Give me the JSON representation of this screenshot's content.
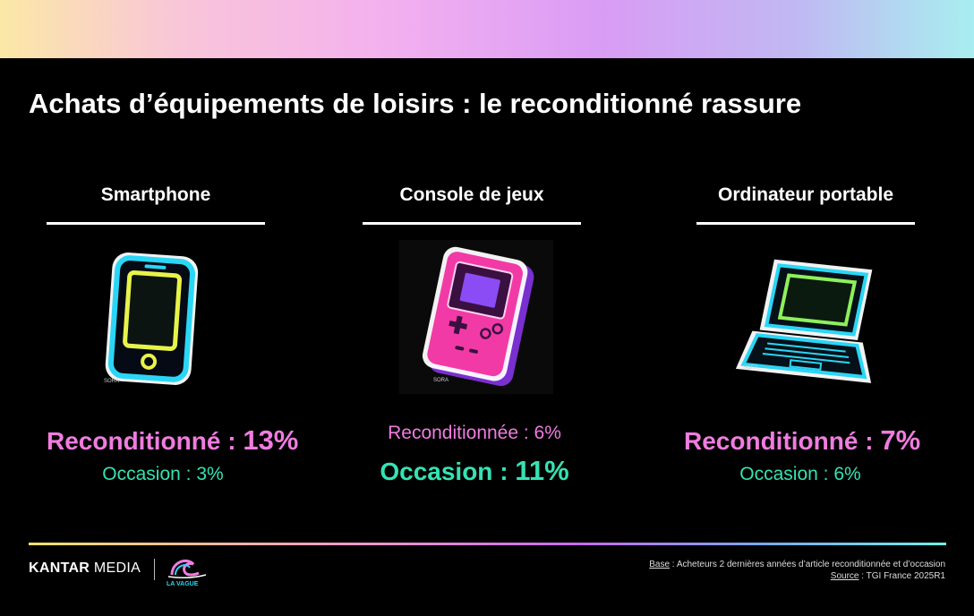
{
  "slide": {
    "title": "Achats d’équipements de loisirs : le reconditionné rassure"
  },
  "categories": [
    {
      "label": "Smartphone",
      "icon": "neon-smartphone-icon",
      "reconditioned_label": "Reconditionné : ",
      "reconditioned_value": "13%",
      "second_stat": "Occasion : 3%"
    },
    {
      "label": "Console de jeux",
      "icon": "neon-game-console-icon",
      "first_stat": "Reconditionnée : 6%",
      "occasion_label": "Occasion : ",
      "occasion_value": "11%"
    },
    {
      "label": "Ordinateur portable",
      "icon": "neon-laptop-icon",
      "reconditioned_label": "Reconditionné : ",
      "reconditioned_value": "7%",
      "second_stat": "Occasion : 6%"
    }
  ],
  "icon_caption": "SORA",
  "footer": {
    "brand_kantar": "KANTAR",
    "brand_media": "MEDIA",
    "logo_text": "LA VAGUE",
    "base_label": "Base",
    "base_text": " : Acheteurs 2 dernières années d’article reconditionnée et d’occasion",
    "source_label": "Source",
    "source_text": " : TGI France 2025R1"
  },
  "colors": {
    "pink": "#f07ce0",
    "teal": "#35e2b3",
    "background": "#000000"
  }
}
